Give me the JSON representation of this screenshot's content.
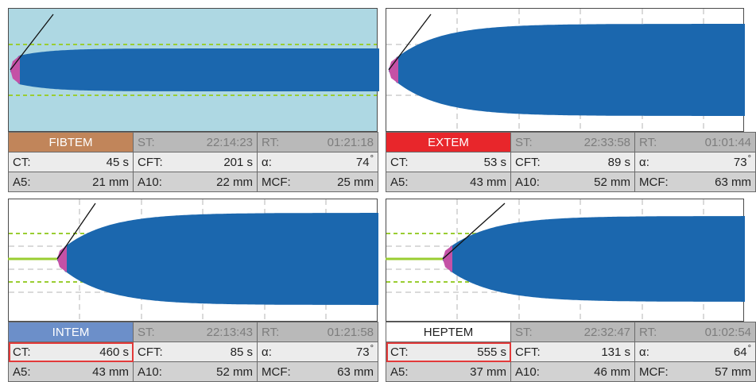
{
  "panels": [
    {
      "id": "fibtem",
      "test_name": "FIBTEM",
      "name_bg": "#c1855a",
      "name_color": "#ffffff",
      "plot_bg": "#aed8e3",
      "st_label": "ST:",
      "st_value": "22:14:23",
      "rt_label": "RT:",
      "rt_value": "01:21:18",
      "ct_label": "CT:",
      "ct_value": "45 s",
      "cft_label": "CFT:",
      "cft_value": "201 s",
      "alpha_label": "α:",
      "alpha_value": "74",
      "a5_label": "A5:",
      "a5_value": "21 mm",
      "a10_label": "A10:",
      "a10_value": "22 mm",
      "mcf_label": "MCF:",
      "mcf_value": "25 mm",
      "ct_highlight": false,
      "amplitude_mm": 25,
      "ct_seconds": 45
    },
    {
      "id": "extem",
      "test_name": "EXTEM",
      "name_bg": "#e8262b",
      "name_color": "#ffffff",
      "plot_bg": "#ffffff",
      "st_label": "ST:",
      "st_value": "22:33:58",
      "rt_label": "RT:",
      "rt_value": "01:01:44",
      "ct_label": "CT:",
      "ct_value": "53 s",
      "cft_label": "CFT:",
      "cft_value": "89 s",
      "alpha_label": "α:",
      "alpha_value": "73",
      "a5_label": "A5:",
      "a5_value": "43 mm",
      "a10_label": "A10:",
      "a10_value": "52 mm",
      "mcf_label": "MCF:",
      "mcf_value": "63 mm",
      "ct_highlight": false,
      "amplitude_mm": 63,
      "ct_seconds": 53
    },
    {
      "id": "intem",
      "test_name": "INTEM",
      "name_bg": "#6c8fc9",
      "name_color": "#ffffff",
      "plot_bg": "#ffffff",
      "st_label": "ST:",
      "st_value": "22:13:43",
      "rt_label": "RT:",
      "rt_value": "01:21:58",
      "ct_label": "CT:",
      "ct_value": "460 s",
      "cft_label": "CFT:",
      "cft_value": "85 s",
      "alpha_label": "α:",
      "alpha_value": "73",
      "a5_label": "A5:",
      "a5_value": "43 mm",
      "a10_label": "A10:",
      "a10_value": "52 mm",
      "mcf_label": "MCF:",
      "mcf_value": "63 mm",
      "ct_highlight": true,
      "amplitude_mm": 63,
      "ct_seconds": 460
    },
    {
      "id": "heptem",
      "test_name": "HEPTEM",
      "name_bg": "#ffffff",
      "name_color": "#222222",
      "plot_bg": "#ffffff",
      "st_label": "ST:",
      "st_value": "22:32:47",
      "rt_label": "RT:",
      "rt_value": "01:02:54",
      "ct_label": "CT:",
      "ct_value": "555 s",
      "cft_label": "CFT:",
      "cft_value": "131 s",
      "alpha_label": "α:",
      "alpha_value": "64",
      "a5_label": "A5:",
      "a5_value": "37 mm",
      "a10_label": "A10:",
      "a10_value": "46 mm",
      "mcf_label": "MCF:",
      "mcf_value": "57 mm",
      "ct_highlight": true,
      "amplitude_mm": 57,
      "ct_seconds": 555
    }
  ],
  "degree_symbol": "°",
  "colors": {
    "clot": "#1b67ae",
    "ct_segment": "#c451a6",
    "baseline": "#9acd32",
    "ct_highlight": "#e23a3a"
  }
}
